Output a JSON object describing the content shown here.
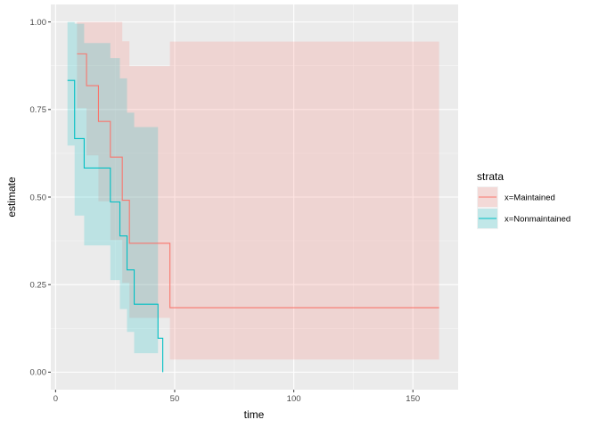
{
  "chart_data": {
    "type": "line",
    "subtype": "step-survival-with-confidence-ribbon",
    "xlabel": "time",
    "ylabel": "estimate",
    "xlim": [
      -2,
      169
    ],
    "ylim": [
      -0.05,
      1.05
    ],
    "x_ticks": [
      0,
      50,
      100,
      150
    ],
    "x_tick_labels": [
      "0",
      "50",
      "100",
      "150"
    ],
    "y_ticks": [
      0,
      0.25,
      0.5,
      0.75,
      1.0
    ],
    "y_tick_labels": [
      "0.00",
      "0.25",
      "0.50",
      "0.75",
      "1.00"
    ],
    "grid": true,
    "legend": {
      "title": "strata",
      "placement": "right"
    },
    "series": [
      {
        "name": "x=Maintained",
        "color": "#F8766D",
        "x": [
          9,
          13,
          18,
          23,
          28,
          31,
          34,
          48,
          161
        ],
        "estimate": [
          0.909,
          0.818,
          0.716,
          0.614,
          0.491,
          0.368,
          0.368,
          0.184,
          0.184
        ],
        "lower": [
          0.754,
          0.619,
          0.488,
          0.377,
          0.255,
          0.155,
          0.155,
          0.036,
          0.036
        ],
        "upper": [
          1.0,
          1.0,
          1.0,
          1.0,
          0.945,
          0.874,
          0.874,
          0.944,
          0.944
        ]
      },
      {
        "name": "x=Nonmaintained",
        "color": "#00BFC4",
        "x": [
          5,
          8,
          12,
          23,
          27,
          30,
          33,
          43,
          45
        ],
        "estimate": [
          0.833,
          0.667,
          0.583,
          0.486,
          0.389,
          0.292,
          0.194,
          0.097,
          0.0
        ],
        "lower": [
          0.647,
          0.447,
          0.362,
          0.263,
          0.18,
          0.115,
          0.054,
          0.0,
          0.0
        ],
        "upper": [
          1.0,
          0.995,
          0.94,
          0.897,
          0.839,
          0.741,
          0.7,
          0.0,
          0.0
        ]
      }
    ]
  }
}
